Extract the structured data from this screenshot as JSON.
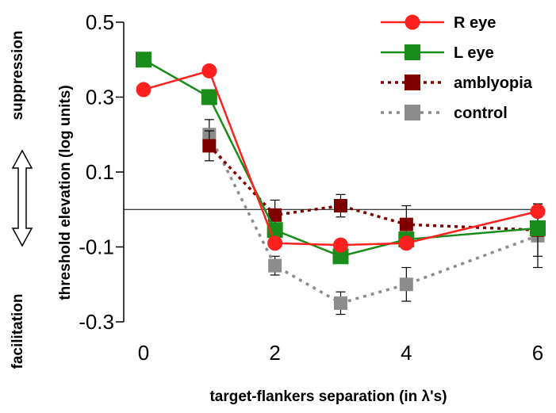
{
  "chart_data": {
    "type": "line",
    "xlabel": "target-flankers separation (in λ's)",
    "ylabel": "threshold elevation (log units)",
    "side_labels": {
      "top": "suppression",
      "bottom": "facilitation"
    },
    "xlim": [
      0,
      6
    ],
    "ylim": [
      -0.3,
      0.5
    ],
    "xticks": [
      0,
      2,
      4,
      6
    ],
    "yticks": [
      0.5,
      0.3,
      0.1,
      -0.1,
      -0.3
    ],
    "ytick_labels": [
      "0.5",
      "0.3",
      "0.1",
      "-0.1",
      "-0.3"
    ],
    "xtick_labels": [
      "0",
      "2",
      "4",
      "6"
    ],
    "reference_line_y": 0,
    "legend_position": "top-right",
    "series": [
      {
        "name": "R eye",
        "color": "#ff2020",
        "marker": "circle",
        "line": "solid",
        "x": [
          0,
          1,
          2,
          3,
          4,
          6
        ],
        "y": [
          0.32,
          0.37,
          -0.09,
          -0.095,
          -0.09,
          -0.005
        ]
      },
      {
        "name": "L eye",
        "color": "#1a8c1a",
        "marker": "square",
        "line": "solid",
        "x": [
          0,
          1,
          2,
          3,
          4,
          6
        ],
        "y": [
          0.4,
          0.3,
          -0.055,
          -0.125,
          -0.08,
          -0.05
        ]
      },
      {
        "name": "amblyopia",
        "color": "#800000",
        "marker": "square",
        "line": "dotted",
        "x": [
          1,
          2,
          3,
          4,
          6
        ],
        "y": [
          0.17,
          -0.015,
          0.01,
          -0.04,
          -0.055
        ],
        "err": [
          0.04,
          0.04,
          0.03,
          0.05,
          0.07
        ]
      },
      {
        "name": "control",
        "color": "#8c8c8c",
        "marker": "square",
        "line": "dashed",
        "x": [
          1,
          2,
          3,
          4,
          6
        ],
        "y": [
          0.2,
          -0.15,
          -0.25,
          -0.2,
          -0.07
        ],
        "err": [
          0.04,
          0.025,
          0.03,
          0.045,
          0.085
        ]
      }
    ]
  }
}
